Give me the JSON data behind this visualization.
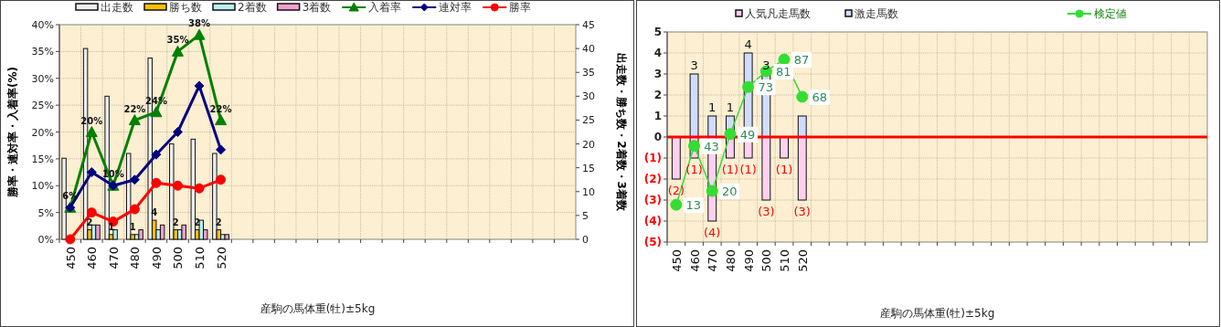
{
  "chart_data": [
    {
      "type": "bar",
      "xlabel": "産駒の馬体重(牡)±5kg",
      "ylabel": "勝率・連対率・入着率(%)",
      "y2label": "出走数・勝ち数・2着数・3着数",
      "categories": [
        "450",
        "460",
        "470",
        "480",
        "490",
        "500",
        "510",
        "520",
        null,
        null,
        null,
        null,
        null,
        null,
        null,
        null,
        null,
        null,
        null,
        null,
        null,
        null,
        null,
        null
      ],
      "ylim": [
        0,
        40
      ],
      "yticks": [
        {
          "value": 0,
          "label": "0%"
        },
        {
          "value": 5,
          "label": "5%"
        },
        {
          "value": 10,
          "label": "10%"
        },
        {
          "value": 15,
          "label": "15%"
        },
        {
          "value": 20,
          "label": "20%"
        },
        {
          "value": 25,
          "label": "25%"
        },
        {
          "value": 30,
          "label": "30%"
        },
        {
          "value": 35,
          "label": "35%"
        },
        {
          "value": 40,
          "label": "40%"
        }
      ],
      "y2lim": [
        0,
        45
      ],
      "y2ticks": [
        0,
        5,
        10,
        15,
        20,
        25,
        30,
        35,
        40,
        45
      ],
      "grid": true,
      "legend": "top",
      "series": [
        {
          "name": "出走数",
          "axis": "y2",
          "color": "#eeeeee",
          "values": [
            17,
            40,
            30,
            18,
            38,
            20,
            21,
            18,
            null,
            null,
            null,
            null,
            null,
            null,
            null,
            null,
            null,
            null,
            null,
            null,
            null,
            null,
            null,
            null
          ]
        },
        {
          "name": "勝ち数",
          "axis": "y2",
          "color": "#ffc000",
          "values": [
            0,
            2,
            1,
            1,
            4,
            2,
            2,
            2,
            null,
            null,
            null,
            null,
            null,
            null,
            null,
            null,
            null,
            null,
            null,
            null,
            null,
            null,
            null,
            null
          ],
          "value_labels": [
            null,
            "2",
            "1",
            "1",
            "4",
            "2",
            "2",
            "2",
            null,
            null,
            null,
            null,
            null,
            null,
            null,
            null,
            null,
            null,
            null,
            null,
            null,
            null,
            null,
            null
          ]
        },
        {
          "name": "2着数",
          "axis": "y2",
          "color": "#b8f0f0",
          "values": [
            null,
            3,
            2,
            1,
            2,
            2,
            4,
            1,
            null,
            null,
            null,
            null,
            null,
            null,
            null,
            null,
            null,
            null,
            null,
            null,
            null,
            null,
            null,
            null
          ]
        },
        {
          "name": "3着数",
          "axis": "y2",
          "color": "#f0a0d0",
          "values": [
            0,
            3,
            0,
            2,
            3,
            3,
            2,
            1,
            null,
            null,
            null,
            null,
            null,
            null,
            null,
            null,
            null,
            null,
            null,
            null,
            null,
            null,
            null,
            null
          ]
        },
        {
          "name": "入着率",
          "type": "line",
          "color": "#008000",
          "marker": "triangle",
          "values": [
            5.9,
            20,
            10,
            22.2,
            23.7,
            35,
            38.1,
            22.2,
            null,
            null,
            null,
            null,
            null,
            null,
            null,
            null,
            null,
            null,
            null,
            null,
            null,
            null,
            null,
            null
          ],
          "value_labels": [
            "6%",
            "20%",
            "10%",
            "22%",
            "24%",
            "35%",
            "38%",
            "22%",
            null,
            null,
            null,
            null,
            null,
            null,
            null,
            null,
            null,
            null,
            null,
            null,
            null,
            null,
            null,
            null
          ]
        },
        {
          "name": "連対率",
          "type": "line",
          "color": "#000080",
          "marker": "diamond",
          "values": [
            5.9,
            12.5,
            10,
            11.1,
            15.8,
            20,
            28.6,
            16.7,
            null,
            null,
            null,
            null,
            null,
            null,
            null,
            null,
            null,
            null,
            null,
            null,
            null,
            null,
            null,
            null
          ]
        },
        {
          "name": "勝率",
          "type": "line",
          "color": "#ff0000",
          "marker": "circle",
          "values": [
            0,
            5,
            3.3,
            5.6,
            10.5,
            10,
            9.5,
            11.1,
            null,
            null,
            null,
            null,
            null,
            null,
            null,
            null,
            null,
            null,
            null,
            null,
            null,
            null,
            null,
            null
          ]
        }
      ]
    },
    {
      "type": "bar",
      "xlabel": "産駒の馬体重(牡)±5kg",
      "stacked": true,
      "categories": [
        "450",
        "460",
        "470",
        "480",
        "490",
        "500",
        "510",
        "520",
        null,
        null,
        null,
        null,
        null,
        null,
        null,
        null,
        null,
        null,
        null,
        null,
        null,
        null,
        null,
        null,
        null,
        null,
        null,
        null,
        null,
        null
      ],
      "ylim": [
        -5,
        5
      ],
      "yticks": [
        {
          "value": -5,
          "label": "(5)"
        },
        {
          "value": -4,
          "label": "(4)"
        },
        {
          "value": -3,
          "label": "(3)"
        },
        {
          "value": -2,
          "label": "(2)"
        },
        {
          "value": -1,
          "label": "(1)"
        },
        0,
        1,
        2,
        3,
        4,
        5
      ],
      "y2lim": [
        -6,
        101
      ],
      "tick_labels": [
        "x",
        "y"
      ],
      "grid": true,
      "legend": "top",
      "ref_lines": [
        {
          "axis": "y",
          "value": 0,
          "color": "#ff0000"
        }
      ],
      "series": [
        {
          "name": "人気凡走馬数",
          "color": "#ffd0f0",
          "values": [
            -2,
            -1,
            -4,
            -1,
            -1,
            -3,
            -1,
            -3,
            null,
            null,
            null,
            null,
            null,
            null,
            null,
            null,
            null,
            null,
            null,
            null,
            null,
            null,
            null,
            null,
            null,
            null,
            null,
            null,
            null,
            null
          ],
          "value_labels": [
            "(2)",
            "(1)",
            "(4)",
            "(1)",
            "(1)",
            "(3)",
            "(1)",
            "(3)",
            null,
            null,
            null,
            null,
            null,
            null,
            null,
            null,
            null,
            null,
            null,
            null,
            null,
            null,
            null,
            null,
            null,
            null,
            null,
            null,
            null,
            null
          ]
        },
        {
          "name": "激走馬数",
          "color": "#d0dcff",
          "values": [
            0,
            3,
            1,
            1,
            4,
            3,
            0,
            1,
            null,
            null,
            null,
            null,
            null,
            null,
            null,
            null,
            null,
            null,
            null,
            null,
            null,
            null,
            null,
            null,
            null,
            null,
            null,
            null,
            null,
            null
          ],
          "value_labels": [
            null,
            "3",
            "1",
            "1",
            "4",
            "3",
            null,
            null,
            null,
            null,
            null,
            null,
            null,
            null,
            null,
            null,
            null,
            null,
            null,
            null,
            null,
            null,
            null,
            null,
            null,
            null,
            null,
            null,
            null,
            null
          ]
        },
        {
          "name": "検定値",
          "type": "line",
          "axis": "y2",
          "color": "#33dd33",
          "marker": "circle",
          "values": [
            13,
            43,
            20,
            49,
            73,
            81,
            87,
            68,
            null,
            null,
            null,
            null,
            null,
            null,
            null,
            null,
            null,
            null,
            null,
            null,
            null,
            null,
            null,
            null,
            null,
            null,
            null,
            null,
            null,
            null
          ],
          "value_labels": [
            "13",
            "43",
            "20",
            "49",
            "73",
            "81",
            "87",
            "68",
            null,
            null,
            null,
            null,
            null,
            null,
            null,
            null,
            null,
            null,
            null,
            null,
            null,
            null,
            null,
            null,
            null,
            null,
            null,
            null,
            null,
            null
          ]
        }
      ]
    }
  ]
}
